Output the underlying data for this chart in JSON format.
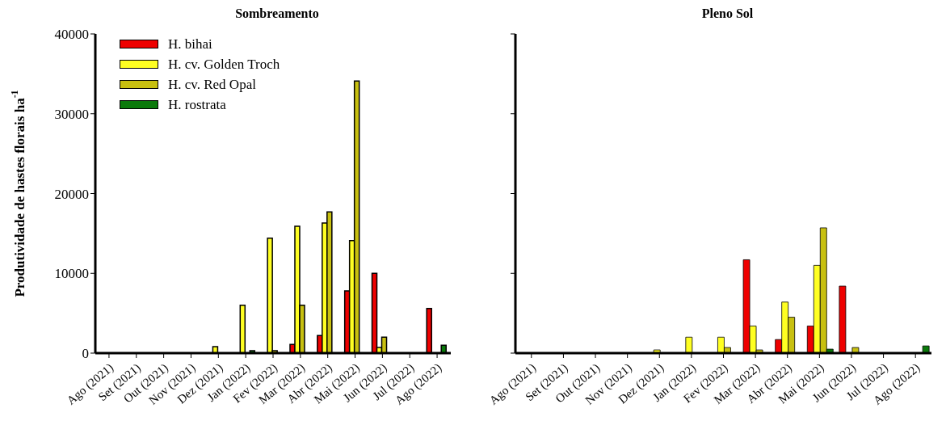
{
  "chart_data": [
    {
      "type": "bar",
      "title": "Sombreamento",
      "ylabel": "Produtividade de hastes florais ha$^{-1}$",
      "categories": [
        "Ago (2021)",
        "Set (2021)",
        "Out (2021)",
        "Nov (2021)",
        "Dez (2021)",
        "Jan (2022)",
        "Fev (2022)",
        "Mar (2022)",
        "Abr (2022)",
        "Mai (2022)",
        "Jun (2022)",
        "Jul (2022)",
        "Ago (2022)"
      ],
      "series": [
        {
          "name": "H. bihai",
          "color": "#ee0000",
          "values": [
            0,
            0,
            0,
            0,
            0,
            0,
            0,
            1100,
            2200,
            7800,
            10000,
            0,
            5600
          ]
        },
        {
          "name": "H. cv. Golden Troch",
          "color": "#ffff22",
          "values": [
            0,
            0,
            0,
            0,
            800,
            6000,
            14400,
            15900,
            16300,
            14100,
            700,
            0,
            0
          ]
        },
        {
          "name": "H. cv. Red Opal",
          "color": "#c8c010",
          "values": [
            0,
            0,
            0,
            0,
            0,
            0,
            300,
            6000,
            17700,
            34100,
            2000,
            0,
            0
          ]
        },
        {
          "name": "H. rostrata",
          "color": "#0a7a0a",
          "values": [
            0,
            0,
            0,
            0,
            0,
            300,
            0,
            0,
            0,
            0,
            0,
            0,
            1000
          ]
        }
      ],
      "ylim": [
        0,
        40000
      ],
      "yticks": [
        0,
        10000,
        20000,
        30000,
        40000
      ],
      "legend": "top left",
      "grid": false
    },
    {
      "type": "bar",
      "title": "Pleno Sol",
      "categories": [
        "Ago (2021)",
        "Set (2021)",
        "Out (2021)",
        "Nov (2021)",
        "Dez (2021)",
        "Jan (2022)",
        "Fev (2022)",
        "Mar (2022)",
        "Abr (2022)",
        "Mai (2022)",
        "Jun (2022)",
        "Jul (2022)",
        "Ago (2022)"
      ],
      "series": [
        {
          "color": "#ee0000",
          "values": [
            0,
            0,
            0,
            0,
            0,
            0,
            0,
            11700,
            1700,
            3400,
            8400,
            0,
            0
          ]
        },
        {
          "color": "#ffff22",
          "values": [
            0,
            0,
            0,
            0,
            400,
            2000,
            2000,
            3400,
            6400,
            11000,
            0,
            0,
            0
          ]
        },
        {
          "color": "#c8c010",
          "values": [
            0,
            0,
            0,
            0,
            0,
            0,
            700,
            400,
            4500,
            15700,
            700,
            0,
            0
          ]
        },
        {
          "color": "#0a7a0a",
          "values": [
            0,
            0,
            0,
            0,
            0,
            0,
            0,
            0,
            0,
            500,
            0,
            0,
            900
          ]
        }
      ],
      "ylim": [
        0,
        40000
      ],
      "yticks": [
        0,
        10000,
        20000,
        30000,
        40000
      ],
      "tick_labels": "x",
      "grid": false
    }
  ]
}
